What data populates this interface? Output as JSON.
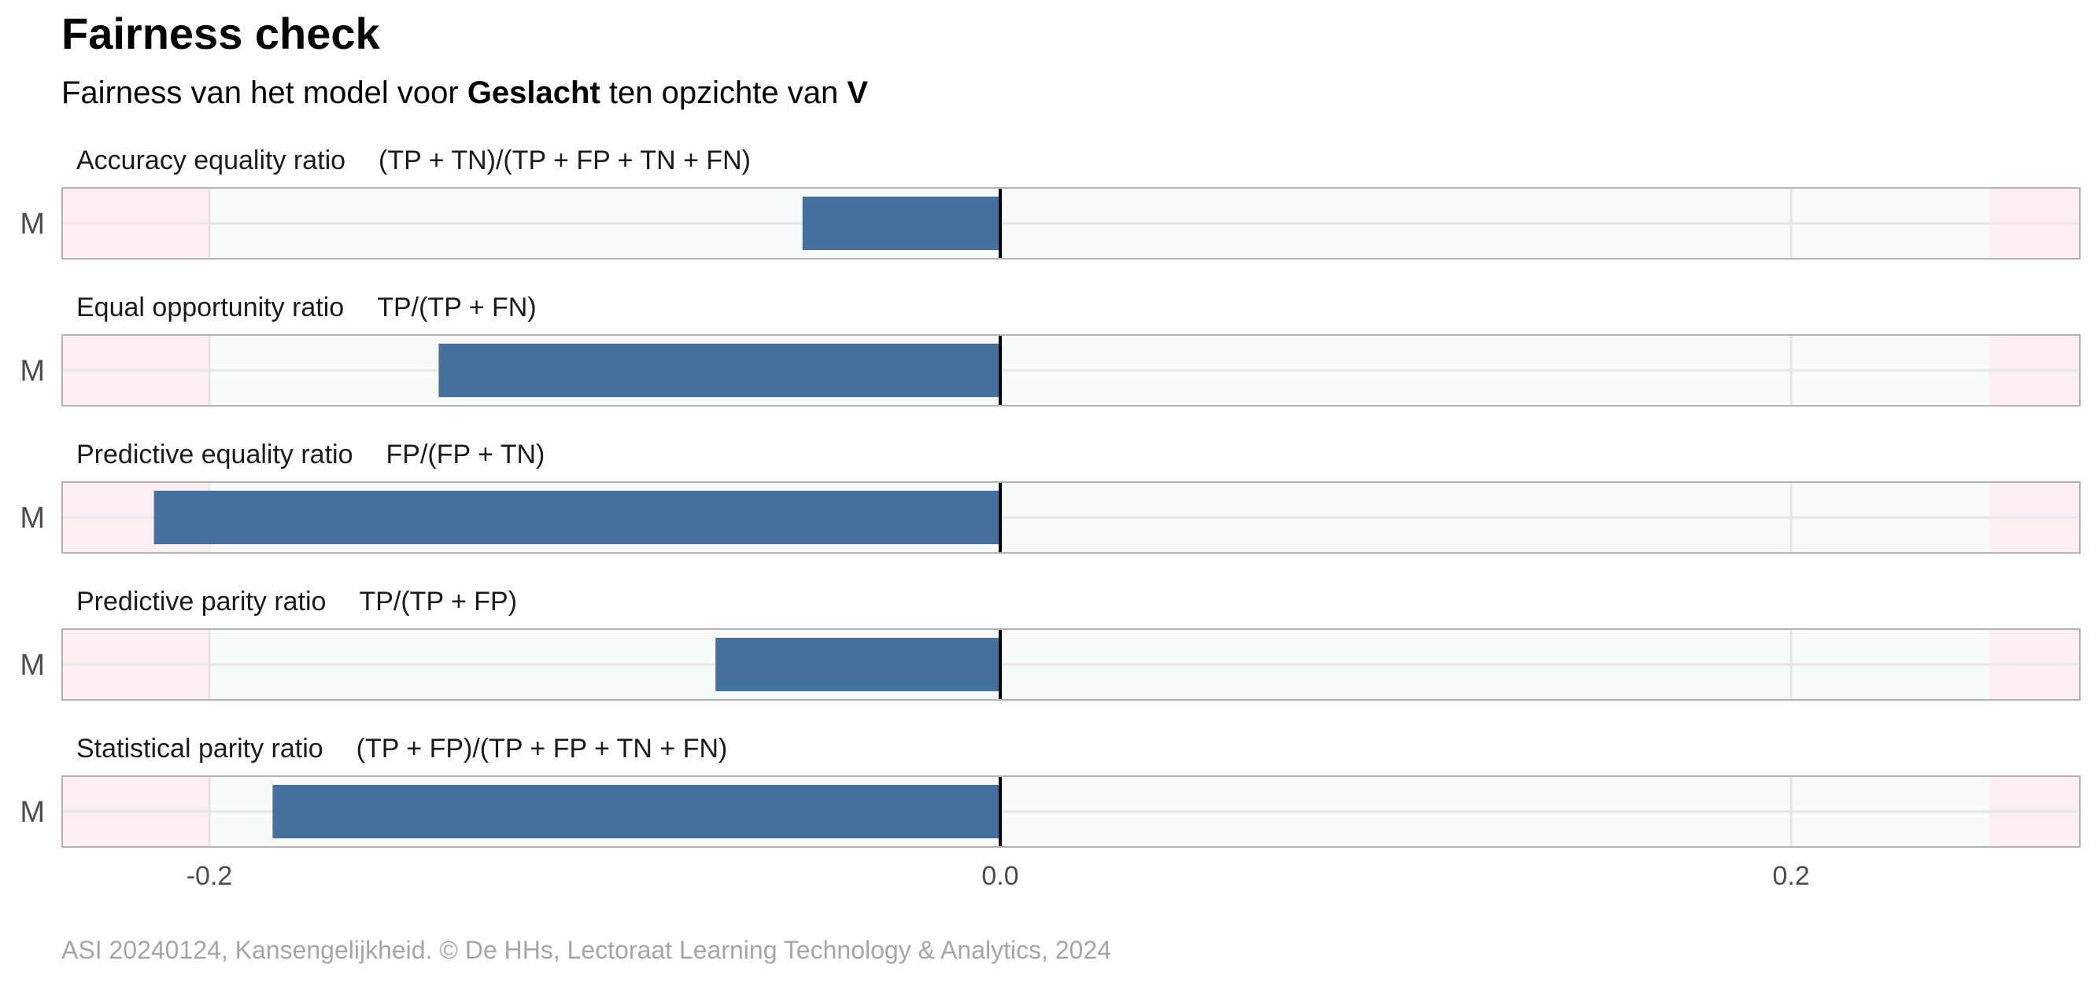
{
  "title": "Fairness check",
  "subtitle": {
    "prefix": "Fairness van het model voor ",
    "variable": "Geslacht",
    "middle": " ten opzichte van ",
    "reference": "V"
  },
  "caption": "ASI 20240124, Kansengelijkheid. © De HHs, Lectoraat Learning Technology & Analytics, 2024",
  "colors": {
    "bar": "#46709D",
    "fair_zone": "#F8FCF8",
    "unfair_zone": "#FDEEF1",
    "zero_line": "#000000",
    "grid": "#E6E6E6",
    "panel_border": "#B3B3B3",
    "caption": "#A6A6A6"
  },
  "chart_data": {
    "type": "bar",
    "orientation": "horizontal",
    "facets": [
      {
        "label": "Accuracy equality ratio",
        "formula": "(TP + TN)/(TP + FP + TN + FN)",
        "category": "M",
        "value": -0.05
      },
      {
        "label": "Equal opportunity ratio",
        "formula": "TP/(TP + FN)",
        "category": "M",
        "value": -0.142
      },
      {
        "label": "Predictive equality ratio",
        "formula": "FP/(FP + TN)",
        "category": "M",
        "value": -0.214
      },
      {
        "label": "Predictive parity ratio",
        "formula": "TP/(TP + FP)",
        "category": "M",
        "value": -0.072
      },
      {
        "label": "Statistical parity ratio",
        "formula": "(TP + FP)/(TP + FP + TN + FN)",
        "category": "M",
        "value": -0.184
      }
    ],
    "fair_range": [
      -0.2,
      0.25
    ],
    "xlim": [
      -0.237,
      0.273
    ],
    "xticks": [
      -0.2,
      0.0,
      0.2
    ],
    "xtick_labels": [
      "-0.2",
      "0.0",
      "0.2"
    ],
    "grid": true
  }
}
